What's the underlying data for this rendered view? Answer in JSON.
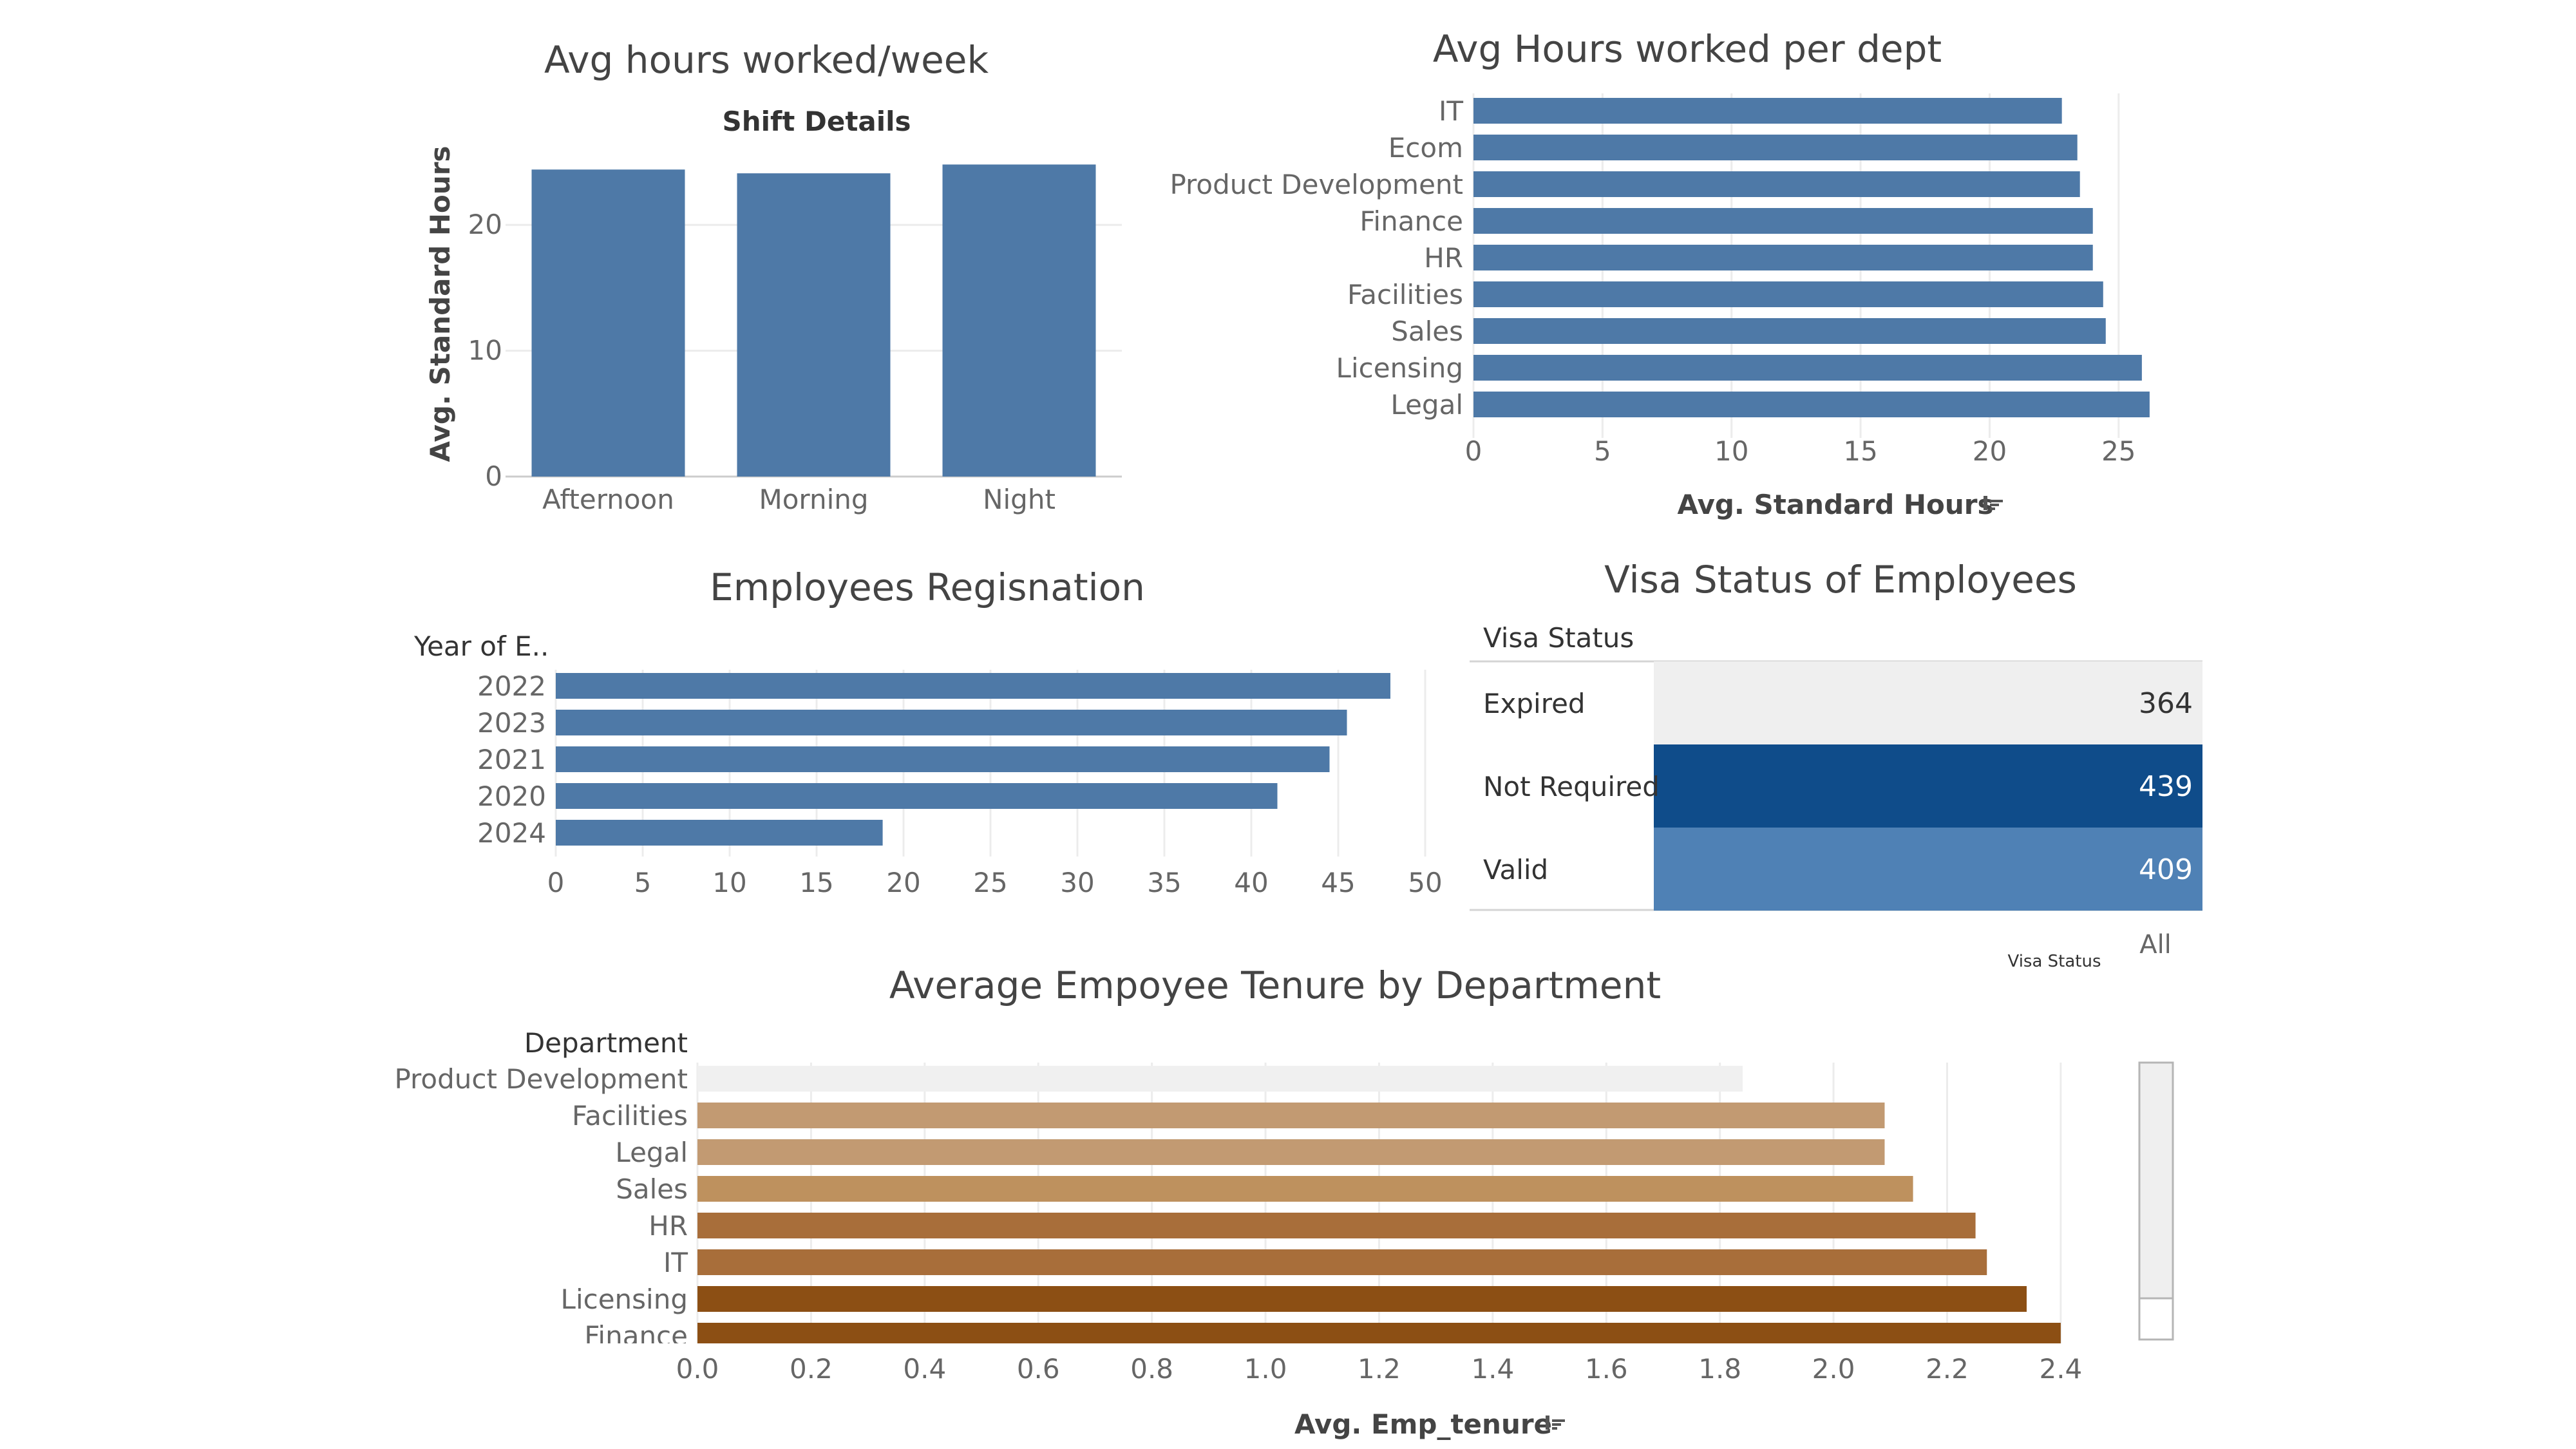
{
  "colors": {
    "bar": "#4e79a7",
    "grid": "#ececec",
    "visa_expired": "#efefef",
    "visa_not_required": "#0f4c8a",
    "visa_valid": "#4f81b5",
    "tenure_ramp": [
      "#f0f0f0",
      "#c29a72",
      "#be915e",
      "#a86e3a",
      "#8c4f14"
    ]
  },
  "chart_data": [
    {
      "id": "shift_hours",
      "type": "bar",
      "title": "Avg hours worked/week",
      "header": "Shift Details",
      "categories": [
        "Afternoon",
        "Morning",
        "Night"
      ],
      "values": [
        24.4,
        24.1,
        24.8
      ],
      "ylabel": "Avg. Standard Hours",
      "ylim": [
        0,
        26
      ],
      "y_ticks": [
        "0",
        "10",
        "20"
      ],
      "grid": true
    },
    {
      "id": "dept_hours",
      "type": "bar",
      "orientation": "horizontal",
      "title": "Avg Hours worked per dept",
      "categories": [
        "IT",
        "Ecom",
        "Product Development",
        "Finance",
        "HR",
        "Facilities",
        "Sales",
        "Licensing",
        "Legal"
      ],
      "values": [
        22.8,
        23.4,
        23.5,
        24.0,
        24.0,
        24.4,
        24.5,
        25.9,
        26.2
      ],
      "xlabel": "Avg. Standard Hours",
      "xlim": [
        0,
        27.5
      ],
      "x_ticks": [
        "0",
        "5",
        "10",
        "15",
        "20",
        "25"
      ],
      "grid": true,
      "sort_indicator": "sort-descending-icon"
    },
    {
      "id": "resignation",
      "type": "bar",
      "orientation": "horizontal",
      "title": "Employees Regisnation",
      "header": "Year of E..",
      "categories": [
        "2022",
        "2023",
        "2021",
        "2020",
        "2024"
      ],
      "values": [
        48,
        45.5,
        44.5,
        41.5,
        18.8
      ],
      "xlim": [
        0,
        50
      ],
      "x_ticks": [
        "0",
        "5",
        "10",
        "15",
        "20",
        "25",
        "30",
        "35",
        "40",
        "45",
        "50"
      ],
      "grid": true
    },
    {
      "id": "visa",
      "type": "heatmap",
      "title": "Visa Status of Employees",
      "header": "Visa Status",
      "categories": [
        "Expired",
        "Not Required",
        "Valid"
      ],
      "values": [
        364,
        439,
        409
      ],
      "legend_title": "Visa Status",
      "legend_value": "All"
    },
    {
      "id": "tenure",
      "type": "bar",
      "orientation": "horizontal",
      "title": "Average Empoyee Tenure by Department",
      "header": "Department",
      "categories": [
        "Product Development",
        "Facilities",
        "Legal",
        "Sales",
        "HR",
        "IT",
        "Licensing",
        "Finance"
      ],
      "values": [
        1.84,
        2.09,
        2.09,
        2.14,
        2.25,
        2.27,
        2.34,
        2.4
      ],
      "xlabel": "Avg. Emp_tenure",
      "xlim": [
        0,
        2.45
      ],
      "x_ticks": [
        "0.0",
        "0.2",
        "0.4",
        "0.6",
        "0.8",
        "1.0",
        "1.2",
        "1.4",
        "1.6",
        "1.8",
        "2.0",
        "2.2",
        "2.4"
      ],
      "grid": true,
      "sort_indicator": "sort-descending-icon"
    }
  ]
}
